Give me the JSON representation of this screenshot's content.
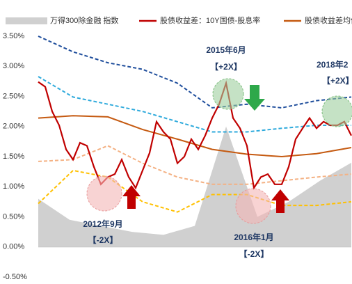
{
  "chart_data": {
    "type": "line",
    "legend": "top",
    "ylim": [
      -0.5,
      3.5
    ],
    "yticks": [
      {
        "value": 3.5,
        "label": "3.50%"
      },
      {
        "value": 3.0,
        "label": "3.00%"
      },
      {
        "value": 2.5,
        "label": "2.50%"
      },
      {
        "value": 2.0,
        "label": "2.00%"
      },
      {
        "value": 1.5,
        "label": "1.50%"
      },
      {
        "value": 1.0,
        "label": "1.00%"
      },
      {
        "value": 0.5,
        "label": "0.50%"
      },
      {
        "value": 0.0,
        "label": "0.00%"
      },
      {
        "value": -0.5,
        "label": "-0.50%"
      }
    ],
    "series": [
      {
        "name": "万得300除金融 指数",
        "kind": "area",
        "color": "#d0d0d0",
        "values": [
          0.8,
          0.45,
          0.35,
          0.25,
          0.2,
          0.35,
          2.0,
          0.5,
          0.75,
          1.1,
          1.4
        ]
      },
      {
        "name": "股债收益差：10Y国债-股息率",
        "kind": "line",
        "color": "#c00000",
        "values": [
          2.74,
          2.66,
          2.25,
          2.02,
          1.62,
          1.45,
          1.73,
          1.68,
          1.33,
          1.04,
          1.16,
          1.21,
          1.45,
          1.16,
          0.98,
          1.27,
          1.56,
          2.08,
          1.91,
          1.79,
          1.39,
          1.5,
          1.79,
          1.62,
          1.85,
          2.14,
          2.37,
          2.72,
          2.14,
          1.97,
          1.68,
          0.98,
          1.16,
          1.21,
          1.04,
          1.04,
          1.33,
          1.79,
          1.97,
          2.14,
          1.97,
          2.08,
          2.02,
          2.02,
          2.08,
          1.85
        ]
      },
      {
        "name": "股债收益差均值",
        "kind": "line",
        "color": "#c55a11",
        "values": [
          2.14,
          2.18,
          2.16,
          1.95,
          1.79,
          1.62,
          1.54,
          1.5,
          1.55,
          1.65
        ]
      }
    ],
    "bands": [
      {
        "color": "#1f4e9c",
        "values": [
          3.5,
          3.24,
          3.06,
          2.95,
          2.72,
          2.31,
          2.37,
          2.31,
          2.43,
          2.49
        ]
      },
      {
        "color": "#2eaadc",
        "values": [
          2.83,
          2.49,
          2.37,
          2.25,
          2.08,
          1.91,
          1.91,
          1.97,
          2.02,
          2.02
        ]
      },
      {
        "color": "#f4b183",
        "values": [
          1.42,
          1.45,
          1.68,
          1.39,
          1.16,
          1.04,
          1.04,
          1.1,
          1.16,
          1.21
        ]
      },
      {
        "color": "#ffc000",
        "values": [
          0.72,
          1.27,
          1.16,
          0.75,
          0.58,
          0.87,
          0.87,
          0.69,
          0.69,
          0.75
        ]
      }
    ],
    "annotations": [
      "2015年6月",
      "【+2X】",
      "2018年2",
      "【+2X】",
      "2012年9月",
      "【-2X】",
      "2016年1月",
      "【-2X】"
    ]
  }
}
